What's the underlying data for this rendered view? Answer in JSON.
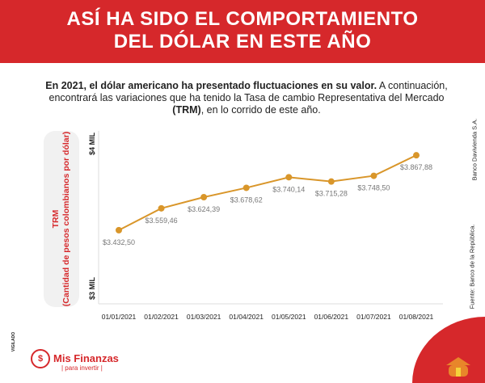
{
  "header": {
    "title_line1": "ASÍ HA SIDO EL COMPORTAMIENTO",
    "title_line2": "DEL DÓLAR EN ESTE AÑO"
  },
  "intro": {
    "bold": "En 2021, el dólar americano ha presentado fluctuaciones en su valor.",
    "normal1": " A continuación, encontrará las variaciones que ha tenido la Tasa de cambio Representativa del Mercado ",
    "bold2": "(TRM)",
    "normal2": ", en lo corrido de este año."
  },
  "chart_data": {
    "type": "line",
    "ylabel": "TRM",
    "ylabel_sub": "(Cantidad de pesos colombianos por dólar)",
    "ytick_labels": [
      "$3 MIL",
      "$4 MIL"
    ],
    "ylim": [
      3000,
      4000
    ],
    "categories": [
      "01/01/2021",
      "01/02/2021",
      "01/03/2021",
      "01/04/2021",
      "01/05/2021",
      "01/06/2021",
      "01/07/2021",
      "01/08/2021"
    ],
    "values": [
      3432.5,
      3559.46,
      3624.39,
      3678.62,
      3740.14,
      3715.28,
      3748.5,
      3867.88
    ],
    "data_labels": [
      "$3.432,50",
      "$3.559,46",
      "$3.624,39",
      "$3.678,62",
      "$3.740,14",
      "$3.715,28",
      "$3.748,50",
      "$3.867,88"
    ],
    "line_color": "#d9962a",
    "grid": false
  },
  "side": {
    "bank": "Banco Davivienda S.A.",
    "source": "Fuente:   Banco de la República."
  },
  "footer": {
    "brand": "Mis Finanzas",
    "tagline": "| para invertir |",
    "vigilado": "VIGILADO"
  },
  "colors": {
    "accent": "#d6282b"
  }
}
